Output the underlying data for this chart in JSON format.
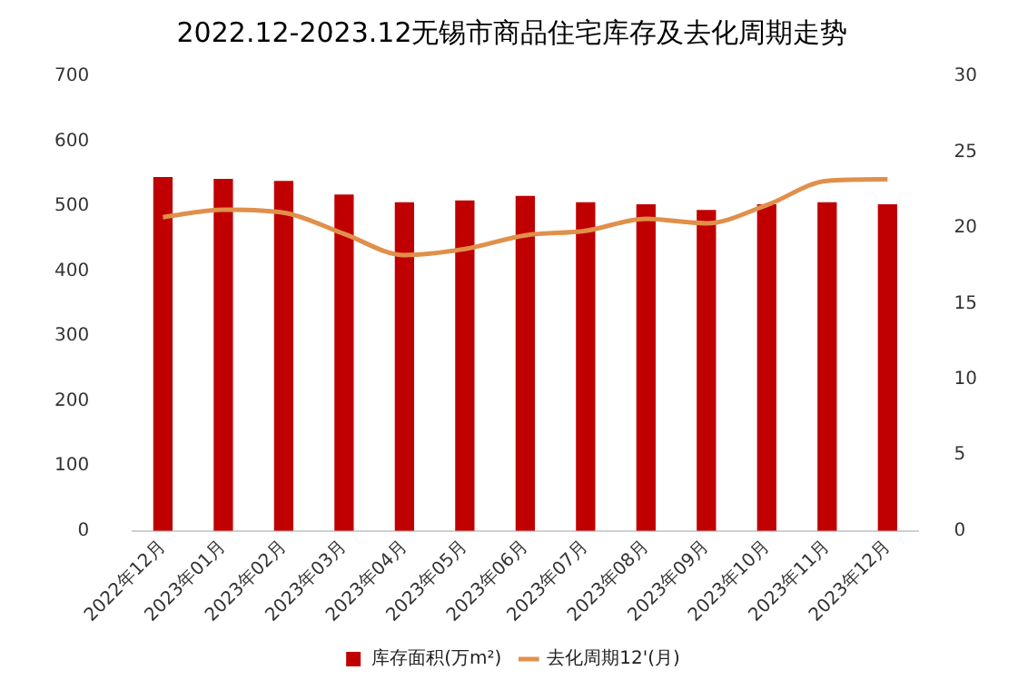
{
  "chart_data": {
    "type": "bar",
    "title": "2022.12-2023.12无锡市商品住宅库存及去化周期走势",
    "categories": [
      "2022年12月",
      "2023年01月",
      "2023年02月",
      "2023年03月",
      "2023年04月",
      "2023年05月",
      "2023年06月",
      "2023年07月",
      "2023年08月",
      "2023年09月",
      "2023年10月",
      "2023年11月",
      "2023年12月"
    ],
    "series": [
      {
        "name": "库存面积(万m²)",
        "color": "#c00000",
        "values": [
          545,
          542,
          539,
          518,
          506,
          509,
          516,
          506,
          503,
          494,
          503,
          506,
          503
        ]
      },
      {
        "name": "去化周期12'(月)",
        "type": "line",
        "axis": "y2",
        "color": "#e0904a",
        "values": [
          20.7,
          21.2,
          21.0,
          19.6,
          18.2,
          18.6,
          19.5,
          19.8,
          20.6,
          20.3,
          21.5,
          23.1,
          23.2
        ]
      }
    ],
    "ylim": [
      0,
      700
    ],
    "yticks": [
      0,
      100,
      200,
      300,
      400,
      500,
      600,
      700
    ],
    "y2lim": [
      0,
      30
    ],
    "y2ticks": [
      0,
      5,
      10,
      15,
      20,
      25,
      30
    ],
    "grid": false,
    "legend": "bottom",
    "marker": "none"
  }
}
